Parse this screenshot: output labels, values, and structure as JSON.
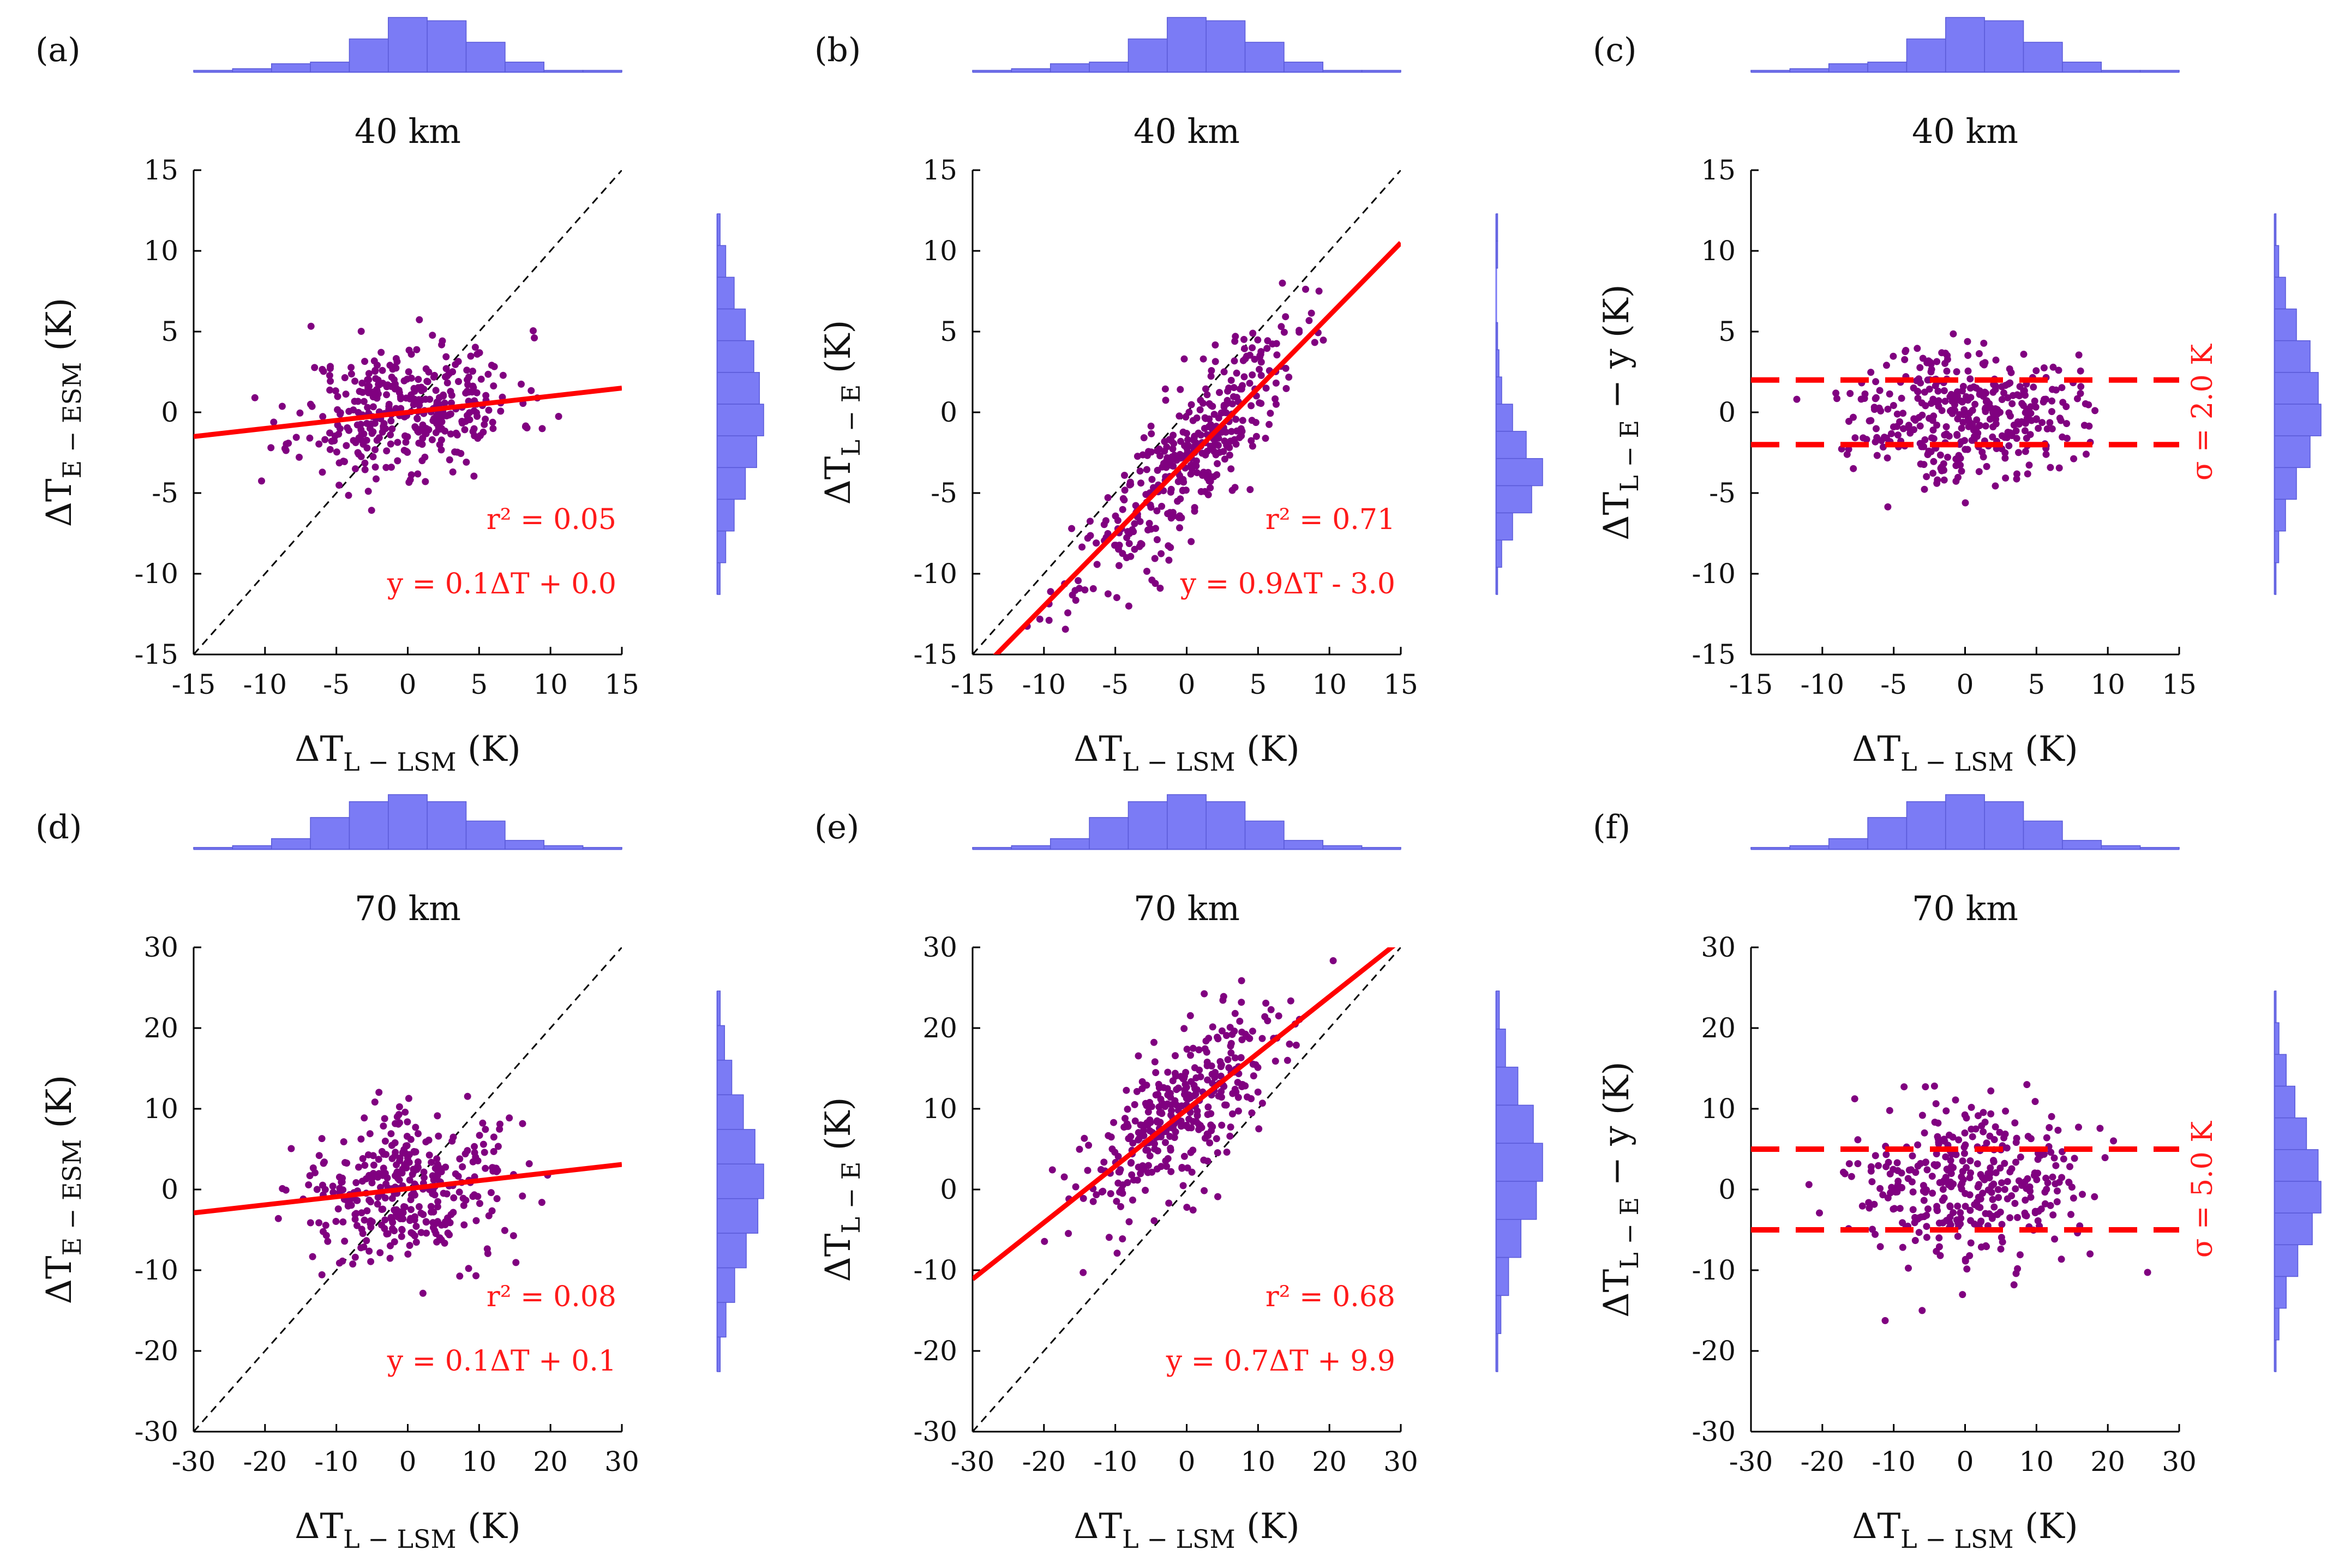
{
  "figure": {
    "point_color": "#800080",
    "fit_color": "#ff0000",
    "hist_color": "#7b7bf5",
    "hist_edge": "#5a5ad8",
    "axis_units": "(K)",
    "x_label_main": "ΔT",
    "x_label_sub": "L − LSM"
  },
  "chart_data": [
    {
      "id": "a",
      "letter": "(a)",
      "title": "40 km",
      "type": "scatter",
      "kind": "fit",
      "xlim": [
        -15,
        15
      ],
      "ylim": [
        -15,
        15
      ],
      "xticks": [
        -15,
        -10,
        -5,
        0,
        5,
        10,
        15
      ],
      "yticks": [
        -15,
        -10,
        -5,
        0,
        5,
        10,
        15
      ],
      "ylabel_main": "ΔT",
      "ylabel_sub": "E − ESM",
      "ylabel_tail": "",
      "fit": {
        "slope": 0.1,
        "intercept": 0.0
      },
      "annotations": [
        "r² = 0.05",
        "y = 0.1ΔT + 0.0"
      ],
      "cloud": {
        "cx": 0,
        "cy": 0.2,
        "sx": 3.8,
        "sy": 2.0,
        "slope": 0.1,
        "seed": 11,
        "n": 380
      },
      "xhist": [
        1,
        2,
        5,
        6,
        20,
        33,
        31,
        18,
        6,
        1,
        1
      ],
      "yhist": [
        2,
        6,
        12,
        20,
        26,
        30,
        33,
        28,
        20,
        12,
        6,
        2
      ]
    },
    {
      "id": "b",
      "letter": "(b)",
      "title": "40 km",
      "type": "scatter",
      "kind": "fit",
      "xlim": [
        -15,
        15
      ],
      "ylim": [
        -15,
        15
      ],
      "xticks": [
        -15,
        -10,
        -5,
        0,
        5,
        10,
        15
      ],
      "yticks": [
        -15,
        -10,
        -5,
        0,
        5,
        10,
        15
      ],
      "ylabel_main": "ΔT",
      "ylabel_sub": "L − E",
      "ylabel_tail": "",
      "fit": {
        "slope": 0.9,
        "intercept": -3.0
      },
      "annotations": [
        "r² = 0.71",
        "y = 0.9ΔT - 3.0"
      ],
      "cloud": {
        "cx": 0,
        "cy": -3.0,
        "sx": 3.8,
        "sy": 2.1,
        "slope": 0.9,
        "seed": 23,
        "n": 380
      },
      "xhist": [
        1,
        2,
        5,
        6,
        20,
        33,
        31,
        18,
        6,
        1,
        1
      ],
      "yhist": [
        1,
        1,
        0,
        0,
        1,
        2,
        4,
        12,
        22,
        34,
        26,
        12,
        4,
        1
      ]
    },
    {
      "id": "c",
      "letter": "(c)",
      "title": "40 km",
      "type": "scatter",
      "kind": "sigma",
      "xlim": [
        -15,
        15
      ],
      "ylim": [
        -15,
        15
      ],
      "xticks": [
        -15,
        -10,
        -5,
        0,
        5,
        10,
        15
      ],
      "yticks": [
        -15,
        -10,
        -5,
        0,
        5,
        10,
        15
      ],
      "ylabel_main": "ΔT",
      "ylabel_sub": "L − E",
      "ylabel_tail": " − y",
      "sigma": 2.0,
      "annotations": [
        "σ = 2.0 K"
      ],
      "cloud": {
        "cx": 0,
        "cy": 0,
        "sx": 3.8,
        "sy": 2.0,
        "slope": 0,
        "seed": 37,
        "n": 380
      },
      "xhist": [
        1,
        2,
        5,
        6,
        20,
        33,
        31,
        18,
        6,
        1,
        1
      ],
      "yhist": [
        1,
        3,
        8,
        16,
        26,
        32,
        34,
        26,
        16,
        8,
        3,
        1
      ]
    },
    {
      "id": "d",
      "letter": "(d)",
      "title": "70 km",
      "type": "scatter",
      "kind": "fit",
      "xlim": [
        -30,
        30
      ],
      "ylim": [
        -30,
        30
      ],
      "xticks": [
        -30,
        -20,
        -10,
        0,
        10,
        20,
        30
      ],
      "yticks": [
        -30,
        -20,
        -10,
        0,
        10,
        20,
        30
      ],
      "ylabel_main": "ΔT",
      "ylabel_sub": "E − ESM",
      "ylabel_tail": "",
      "fit": {
        "slope": 0.1,
        "intercept": 0.1
      },
      "annotations": [
        "r² = 0.08",
        "y = 0.1ΔT + 0.1"
      ],
      "cloud": {
        "cx": 0,
        "cy": 0.1,
        "sx": 7.5,
        "sy": 4.6,
        "slope": 0.1,
        "seed": 41,
        "n": 360
      },
      "xhist": [
        1,
        2,
        6,
        18,
        27,
        31,
        27,
        16,
        5,
        2,
        1
      ],
      "yhist": [
        2,
        5,
        10,
        18,
        26,
        32,
        28,
        20,
        12,
        6,
        2
      ]
    },
    {
      "id": "e",
      "letter": "(e)",
      "title": "70 km",
      "type": "scatter",
      "kind": "fit",
      "xlim": [
        -30,
        30
      ],
      "ylim": [
        -30,
        30
      ],
      "xticks": [
        -30,
        -20,
        -10,
        0,
        10,
        20,
        30
      ],
      "yticks": [
        -30,
        -20,
        -10,
        0,
        10,
        20,
        30
      ],
      "ylabel_main": "ΔT",
      "ylabel_sub": "L − E",
      "ylabel_tail": "",
      "fit": {
        "slope": 0.7,
        "intercept": 9.9
      },
      "annotations": [
        "r² = 0.68",
        "y = 0.7ΔT + 9.9"
      ],
      "cloud": {
        "cx": 0,
        "cy": 9.9,
        "sx": 7.5,
        "sy": 4.6,
        "slope": 0.7,
        "seed": 53,
        "n": 360
      },
      "xhist": [
        1,
        2,
        6,
        18,
        27,
        31,
        27,
        16,
        5,
        2,
        1
      ],
      "yhist": [
        2,
        6,
        14,
        24,
        30,
        26,
        16,
        8,
        3,
        1
      ]
    },
    {
      "id": "f",
      "letter": "(f)",
      "title": "70 km",
      "type": "scatter",
      "kind": "sigma",
      "xlim": [
        -30,
        30
      ],
      "ylim": [
        -30,
        30
      ],
      "xticks": [
        -30,
        -20,
        -10,
        0,
        10,
        20,
        30
      ],
      "yticks": [
        -30,
        -20,
        -10,
        0,
        10,
        20,
        30
      ],
      "ylabel_main": "ΔT",
      "ylabel_sub": "L − E",
      "ylabel_tail": " − y",
      "sigma": 5.0,
      "annotations": [
        "σ = 5.0 K"
      ],
      "cloud": {
        "cx": 0,
        "cy": 0,
        "sx": 7.5,
        "sy": 4.8,
        "slope": 0,
        "seed": 67,
        "n": 360
      },
      "xhist": [
        1,
        2,
        6,
        18,
        27,
        31,
        27,
        16,
        5,
        2,
        1
      ],
      "yhist": [
        1,
        3,
        8,
        14,
        22,
        30,
        32,
        26,
        16,
        8,
        3,
        1
      ]
    }
  ]
}
